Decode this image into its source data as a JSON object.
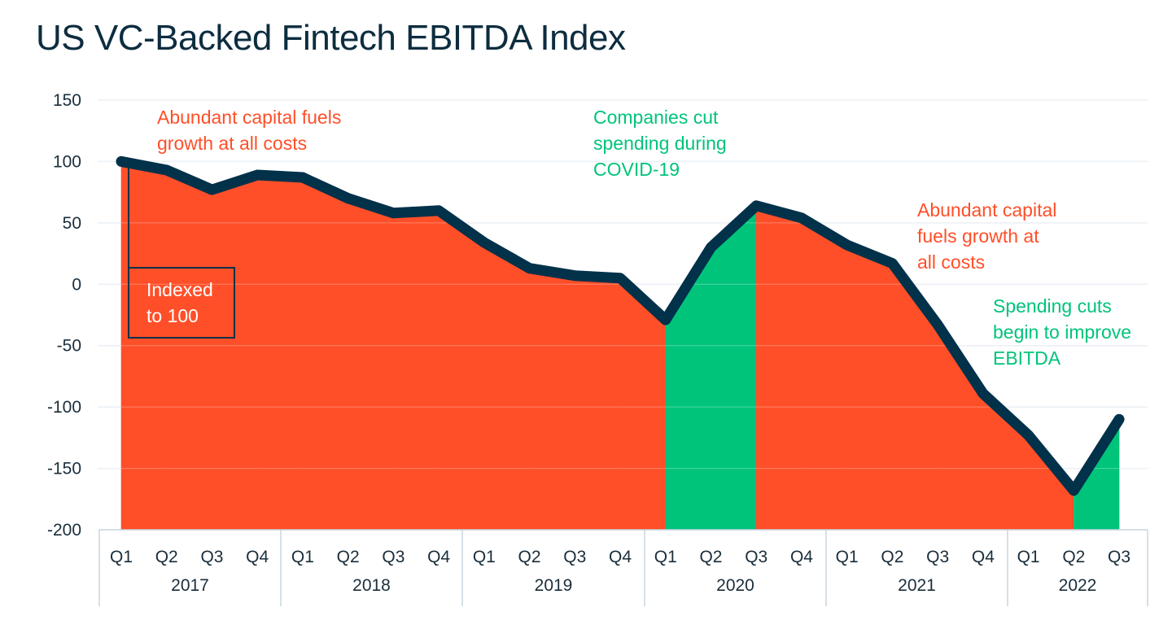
{
  "chart_data": {
    "type": "area",
    "title": "US VC-Backed Fintech EBITDA Index",
    "xlabel": "",
    "ylabel": "",
    "ylim": [
      -200,
      150
    ],
    "yticks": [
      "150",
      "100",
      "50",
      "0",
      "-50",
      "-100",
      "-150",
      "-200"
    ],
    "grid": true,
    "years": [
      "2017",
      "2018",
      "2019",
      "2020",
      "2021",
      "2022"
    ],
    "categories": [
      "Q1",
      "Q2",
      "Q3",
      "Q4",
      "Q1",
      "Q2",
      "Q3",
      "Q4",
      "Q1",
      "Q2",
      "Q3",
      "Q4",
      "Q1",
      "Q2",
      "Q3",
      "Q4",
      "Q1",
      "Q2",
      "Q3",
      "Q4",
      "Q1",
      "Q2",
      "Q3"
    ],
    "values": [
      100,
      93,
      77,
      89,
      87,
      70,
      58,
      60,
      34,
      13,
      7,
      5,
      -29,
      30,
      64,
      54,
      32,
      17,
      -33,
      -89,
      -123,
      -168,
      -110
    ],
    "highlight_ranges": [
      {
        "from_index": 12,
        "to_index": 14,
        "color": "#00C47A"
      },
      {
        "from_index": 21,
        "to_index": 22,
        "color": "#00C47A"
      }
    ],
    "colors": {
      "area": "#FF4F28",
      "highlight": "#00C47A",
      "line": "#02314A"
    },
    "annotations": [
      {
        "lines": [
          "Abundant capital fuels",
          "growth at all costs"
        ],
        "color": "#FF4F28"
      },
      {
        "lines": [
          "Companies cut",
          "spending during",
          "COVID-19"
        ],
        "color": "#00C47A"
      },
      {
        "lines": [
          "Abundant capital",
          "fuels growth at",
          "all costs"
        ],
        "color": "#FF4F28"
      },
      {
        "lines": [
          "Spending cuts",
          "begin to improve",
          "EBITDA"
        ],
        "color": "#00C47A"
      },
      {
        "lines": [
          "Indexed",
          "to 100"
        ],
        "color": "#FFFFFF"
      }
    ]
  }
}
